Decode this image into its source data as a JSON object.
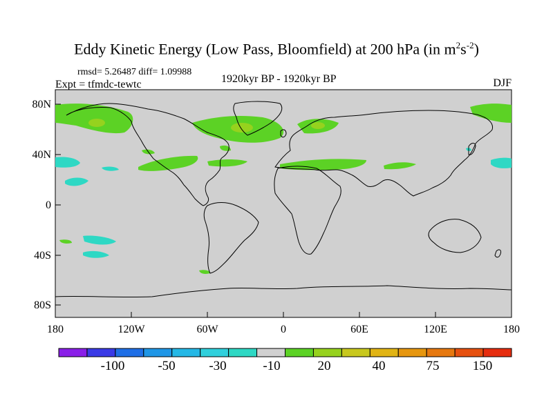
{
  "title": {
    "main": "Eddy Kinetic Energy (Low Pass, Bloomfield) at 200 hPa (in m",
    "sup1": "2",
    "mid": "s",
    "sup2": "-2",
    "tail": ")"
  },
  "stats": "rmsd= 5.26487 diff= 1.09988",
  "expt": "Expt = tfmdc-tewtc",
  "period": "1920kyr BP - 1920kyr BP",
  "season": "DJF",
  "map": {
    "lat_ticks": [
      "80N",
      "40N",
      "0",
      "40S",
      "80S"
    ],
    "lon_ticks": [
      "180",
      "120W",
      "60W",
      "0",
      "60E",
      "120E",
      "180"
    ],
    "land_color": "#d0d0d0",
    "coast_color": "#000000"
  },
  "colorbar": {
    "colors": [
      "#8a1fe8",
      "#3a3ae6",
      "#1f6fe6",
      "#1f96e6",
      "#25b8e6",
      "#30d0dc",
      "#2ed8c4",
      "#d0d0d0",
      "#5cd225",
      "#96d21e",
      "#c8c81e",
      "#e1b414",
      "#e6960f",
      "#e6780f",
      "#e6500f",
      "#e62d0f"
    ],
    "labels": [
      "-100",
      "-50",
      "-30",
      "-10",
      "20",
      "40",
      "75",
      "150"
    ]
  }
}
